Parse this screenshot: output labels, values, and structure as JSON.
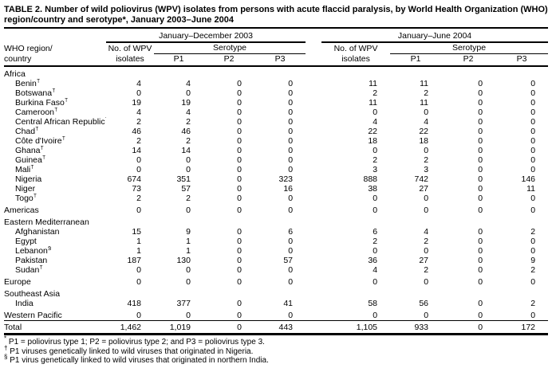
{
  "title": "TABLE 2. Number of wild poliovirus (WPV) isolates from persons with acute flaccid paralysis, by World Health Organization (WHO) region/country and serotype*, January 2003–June 2004",
  "header": {
    "region_label_line1": "WHO region/",
    "region_label_line2": "country",
    "period_2003": "January–December 2003",
    "period_2004": "January–June 2004",
    "isolates_line1": "No. of WPV",
    "isolates_line2": "isolates",
    "serotype": "Serotype",
    "p1": "P1",
    "p2": "P2",
    "p3": "P3"
  },
  "rows": [
    {
      "type": "section",
      "label": "Africa"
    },
    {
      "type": "country",
      "label": "Benin",
      "marker": "†",
      "values": [
        "4",
        "4",
        "0",
        "0",
        "11",
        "11",
        "0",
        "0"
      ]
    },
    {
      "type": "country",
      "label": "Botswana",
      "marker": "†",
      "values": [
        "0",
        "0",
        "0",
        "0",
        "2",
        "2",
        "0",
        "0"
      ]
    },
    {
      "type": "country",
      "label": "Burkina Faso",
      "marker": "†",
      "values": [
        "19",
        "19",
        "0",
        "0",
        "11",
        "11",
        "0",
        "0"
      ]
    },
    {
      "type": "country",
      "label": "Cameroon",
      "marker": "†",
      "values": [
        "4",
        "4",
        "0",
        "0",
        "0",
        "0",
        "0",
        "0"
      ]
    },
    {
      "type": "country",
      "label": "Central African Republic",
      "marker": "†",
      "values": [
        "2",
        "2",
        "0",
        "0",
        "4",
        "4",
        "0",
        "0"
      ]
    },
    {
      "type": "country",
      "label": "Chad",
      "marker": "†",
      "values": [
        "46",
        "46",
        "0",
        "0",
        "22",
        "22",
        "0",
        "0"
      ]
    },
    {
      "type": "country",
      "label": "Côte d'Ivoire",
      "marker": "†",
      "values": [
        "2",
        "2",
        "0",
        "0",
        "18",
        "18",
        "0",
        "0"
      ]
    },
    {
      "type": "country",
      "label": "Ghana",
      "marker": "†",
      "values": [
        "14",
        "14",
        "0",
        "0",
        "0",
        "0",
        "0",
        "0"
      ]
    },
    {
      "type": "country",
      "label": "Guinea",
      "marker": "†",
      "values": [
        "0",
        "0",
        "0",
        "0",
        "2",
        "2",
        "0",
        "0"
      ]
    },
    {
      "type": "country",
      "label": "Mali",
      "marker": "†",
      "values": [
        "0",
        "0",
        "0",
        "0",
        "3",
        "3",
        "0",
        "0"
      ]
    },
    {
      "type": "country",
      "label": "Nigeria",
      "marker": "",
      "values": [
        "674",
        "351",
        "0",
        "323",
        "888",
        "742",
        "0",
        "146"
      ]
    },
    {
      "type": "country",
      "label": "Niger",
      "marker": "",
      "values": [
        "73",
        "57",
        "0",
        "16",
        "38",
        "27",
        "0",
        "11"
      ]
    },
    {
      "type": "country",
      "label": "Togo",
      "marker": "†",
      "values": [
        "2",
        "2",
        "0",
        "0",
        "0",
        "0",
        "0",
        "0"
      ]
    },
    {
      "type": "region",
      "label": "Americas",
      "values": [
        "0",
        "0",
        "0",
        "0",
        "0",
        "0",
        "0",
        "0"
      ]
    },
    {
      "type": "section",
      "label": "Eastern Mediterranean"
    },
    {
      "type": "country",
      "label": "Afghanistan",
      "marker": "",
      "values": [
        "15",
        "9",
        "0",
        "6",
        "6",
        "4",
        "0",
        "2"
      ]
    },
    {
      "type": "country",
      "label": "Egypt",
      "marker": "",
      "values": [
        "1",
        "1",
        "0",
        "0",
        "2",
        "2",
        "0",
        "0"
      ]
    },
    {
      "type": "country",
      "label": "Lebanon",
      "marker": "§",
      "values": [
        "1",
        "1",
        "0",
        "0",
        "0",
        "0",
        "0",
        "0"
      ]
    },
    {
      "type": "country",
      "label": "Pakistan",
      "marker": "",
      "values": [
        "187",
        "130",
        "0",
        "57",
        "36",
        "27",
        "0",
        "9"
      ]
    },
    {
      "type": "country",
      "label": "Sudan",
      "marker": "†",
      "values": [
        "0",
        "0",
        "0",
        "0",
        "4",
        "2",
        "0",
        "2"
      ]
    },
    {
      "type": "region",
      "label": "Europe",
      "values": [
        "0",
        "0",
        "0",
        "0",
        "0",
        "0",
        "0",
        "0"
      ]
    },
    {
      "type": "section",
      "label": "Southeast Asia"
    },
    {
      "type": "country",
      "label": "India",
      "marker": "",
      "values": [
        "418",
        "377",
        "0",
        "41",
        "58",
        "56",
        "0",
        "2"
      ]
    },
    {
      "type": "region",
      "label": "Western Pacific",
      "values": [
        "0",
        "0",
        "0",
        "0",
        "0",
        "0",
        "0",
        "0"
      ]
    },
    {
      "type": "total",
      "label": "Total",
      "values": [
        "1,462",
        "1,019",
        "0",
        "443",
        "1,105",
        "933",
        "0",
        "172"
      ]
    }
  ],
  "footnotes": [
    {
      "marker": "*",
      "text": "P1 = poliovirus type 1; P2 = poliovirus type 2; and P3 = poliovirus type 3."
    },
    {
      "marker": "†",
      "text": "P1 viruses genetically linked to wild viruses that originated in Nigeria."
    },
    {
      "marker": "§",
      "text": "P1 virus genetically linked to wild viruses that originated in northern India."
    }
  ]
}
